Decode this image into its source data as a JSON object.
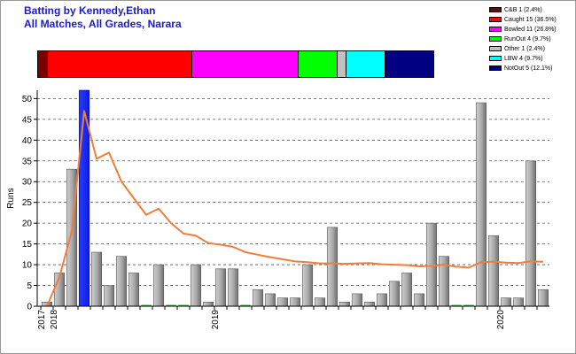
{
  "header": {
    "title_line1": "Batting by Kennedy,Ethan",
    "title_line2": "All Matches, All Grades, Narara"
  },
  "legend": [
    {
      "label": "C&B 1 (2.4%)",
      "color": "#7a0000",
      "share": 2.4
    },
    {
      "label": "Caught 15 (36.5%)",
      "color": "#ff0000",
      "share": 36.5
    },
    {
      "label": "Bowled 11 (26.8%)",
      "color": "#ff00ff",
      "share": 26.8
    },
    {
      "label": "RunOut 4 (9.7%)",
      "color": "#00ff00",
      "share": 9.7
    },
    {
      "label": "Other 1 (2.4%)",
      "color": "#c0c0c0",
      "share": 2.4
    },
    {
      "label": "LBW 4 (9.7%)",
      "color": "#00ffff",
      "share": 9.7
    },
    {
      "label": "NotOut 5 (12.1%)",
      "color": "#000080",
      "share": 12.1
    }
  ],
  "chart_data": {
    "type": "bar",
    "ylabel": "Runs",
    "ylim": [
      0,
      52
    ],
    "yticks": [
      "0",
      "5",
      "10",
      "15",
      "20",
      "25",
      "30",
      "35",
      "40",
      "45",
      "50"
    ],
    "xticks": [
      {
        "label": "2017",
        "index": 0
      },
      {
        "label": "2018",
        "index": 1
      },
      {
        "label": "2019",
        "index": 14
      },
      {
        "label": "2020",
        "index": 37
      }
    ],
    "grid": true,
    "colors": {
      "bar": "#a8a8a8",
      "highlight": "#0a1ee0",
      "average": "#f07d3a",
      "grid": "#555555"
    },
    "highlight_index": 3,
    "bars": [
      1,
      8,
      33,
      52,
      13,
      5,
      12,
      8,
      0,
      10,
      0,
      0,
      10,
      1,
      9,
      9,
      0,
      4,
      3,
      2,
      2,
      10,
      2,
      19,
      1,
      3,
      1,
      3,
      6,
      8,
      3,
      20,
      12,
      0,
      0,
      49,
      17,
      2,
      2,
      35,
      4
    ],
    "average_line": [
      0,
      7,
      18,
      47,
      35.5,
      37,
      30,
      26,
      22,
      23.5,
      20,
      17.5,
      17,
      15.2,
      14.8,
      14.3,
      13,
      12.4,
      11.8,
      11.3,
      10.8,
      10.6,
      10.3,
      10.3,
      10.2,
      10.3,
      10.4,
      10.1,
      10,
      9.9,
      9.6,
      9.7,
      10,
      9.5,
      9.3,
      10.6,
      10.7,
      10.5,
      10.4,
      10.8,
      10.7
    ]
  }
}
